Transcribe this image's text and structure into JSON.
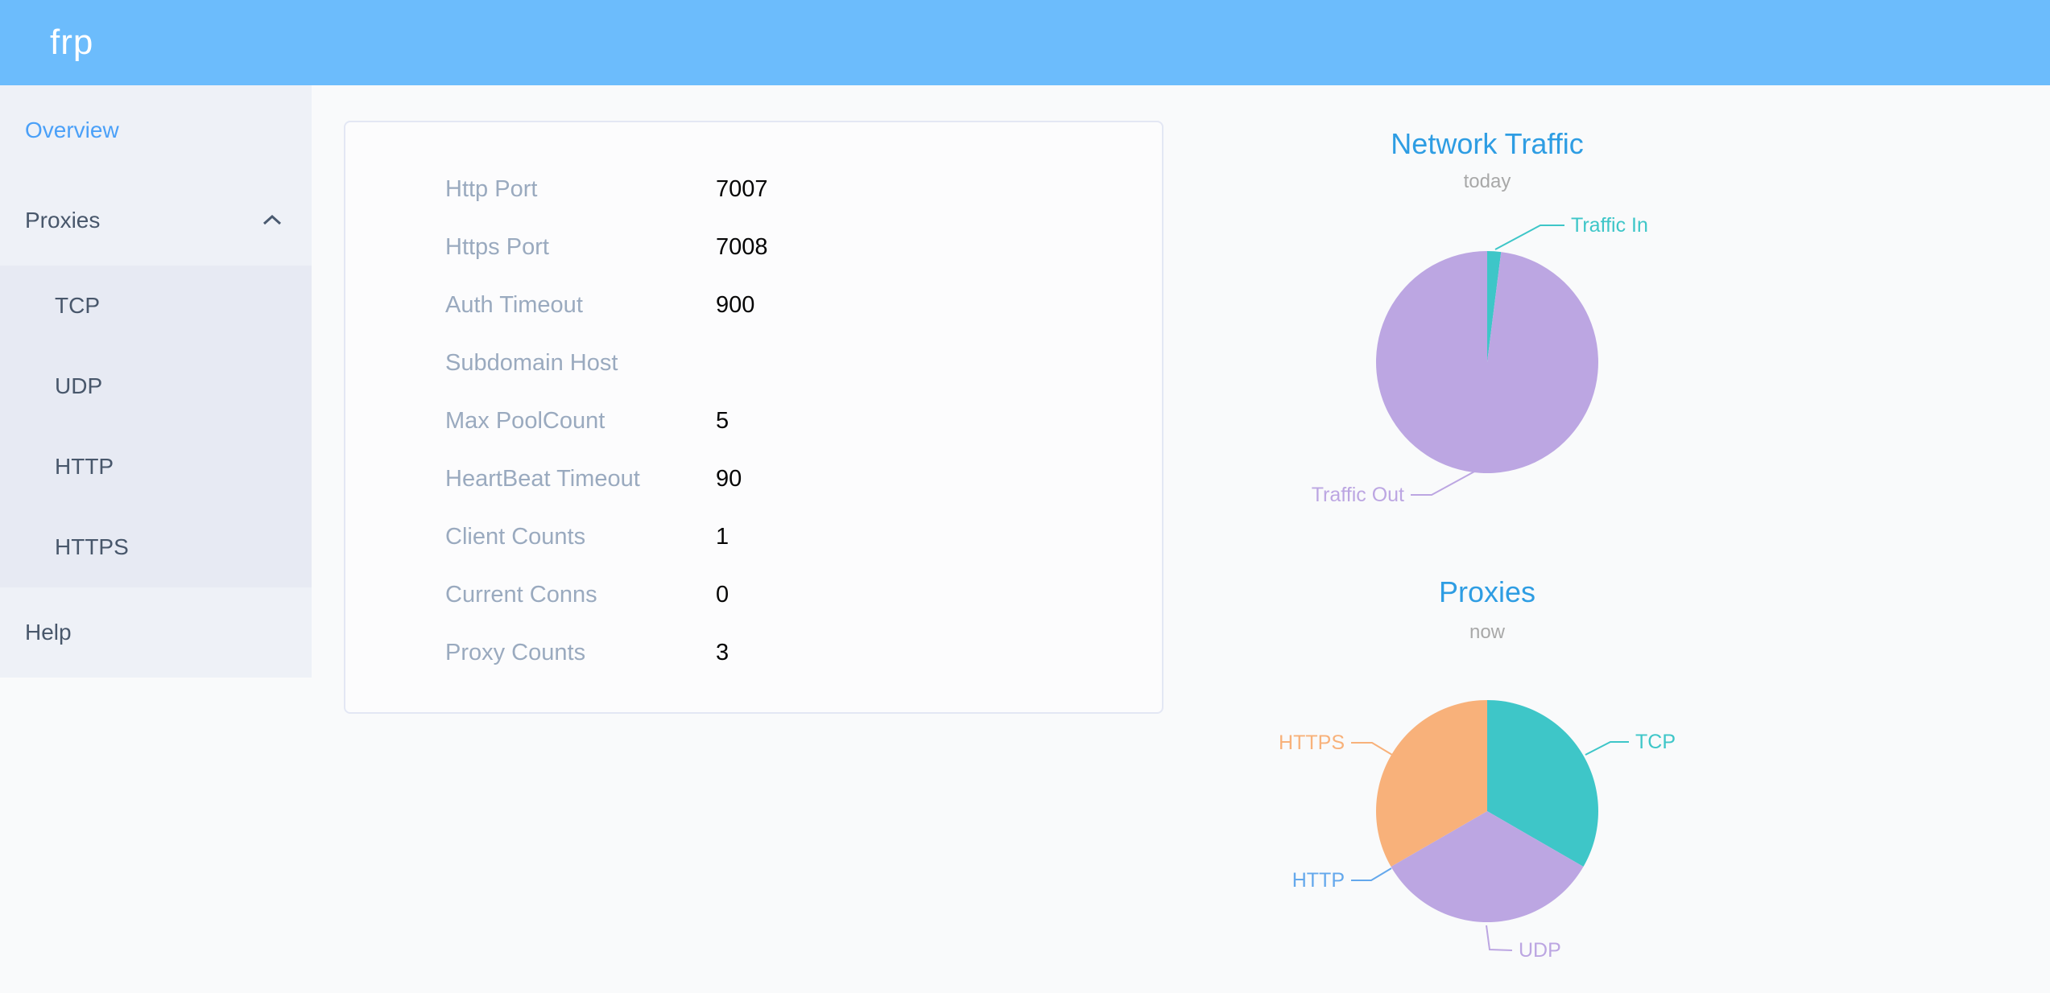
{
  "theme": {
    "header_bg": "#6cbcfc",
    "logo_color": "#ffffff",
    "active_menu_color": "#4aa0f8",
    "menu_text_color": "#48576b",
    "chart_title_color": "#2e9de3",
    "chart_subtitle_color": "#a8a8a8",
    "info_label_color": "#9aaabf",
    "info_value_color": "#060606"
  },
  "header": {
    "logo": "frp"
  },
  "sidebar": {
    "overview": "Overview",
    "proxies": "Proxies",
    "proxies_children": [
      "TCP",
      "UDP",
      "HTTP",
      "HTTPS"
    ],
    "help": "Help"
  },
  "server_info": {
    "rows": [
      {
        "label": "Http Port",
        "value": "7007"
      },
      {
        "label": "Https Port",
        "value": "7008"
      },
      {
        "label": "Auth Timeout",
        "value": "900"
      },
      {
        "label": "Subdomain Host",
        "value": ""
      },
      {
        "label": "Max PoolCount",
        "value": "5"
      },
      {
        "label": "HeartBeat Timeout",
        "value": "90"
      },
      {
        "label": "Client Counts",
        "value": "1"
      },
      {
        "label": "Current Conns",
        "value": "0"
      },
      {
        "label": "Proxy Counts",
        "value": "3"
      }
    ]
  },
  "chart_data": [
    {
      "type": "pie",
      "title": "Network Traffic",
      "subtitle": "today",
      "legend_position": "callout-labels",
      "values_are": "percent of circle, estimated from slice angles",
      "series": [
        {
          "name": "Traffic In",
          "value": 2,
          "color": "#3ec6c8"
        },
        {
          "name": "Traffic Out",
          "value": 98,
          "color": "#bca6e2"
        }
      ]
    },
    {
      "type": "pie",
      "title": "Proxies",
      "subtitle": "now",
      "legend_position": "callout-labels",
      "values_are": "proxy counts per type",
      "series": [
        {
          "name": "TCP",
          "value": 1,
          "color": "#3ec6c8"
        },
        {
          "name": "UDP",
          "value": 1,
          "color": "#bca6e2"
        },
        {
          "name": "HTTP",
          "value": 0,
          "color": "#64a8ec"
        },
        {
          "name": "HTTPS",
          "value": 1,
          "color": "#f8b17a"
        }
      ]
    }
  ]
}
